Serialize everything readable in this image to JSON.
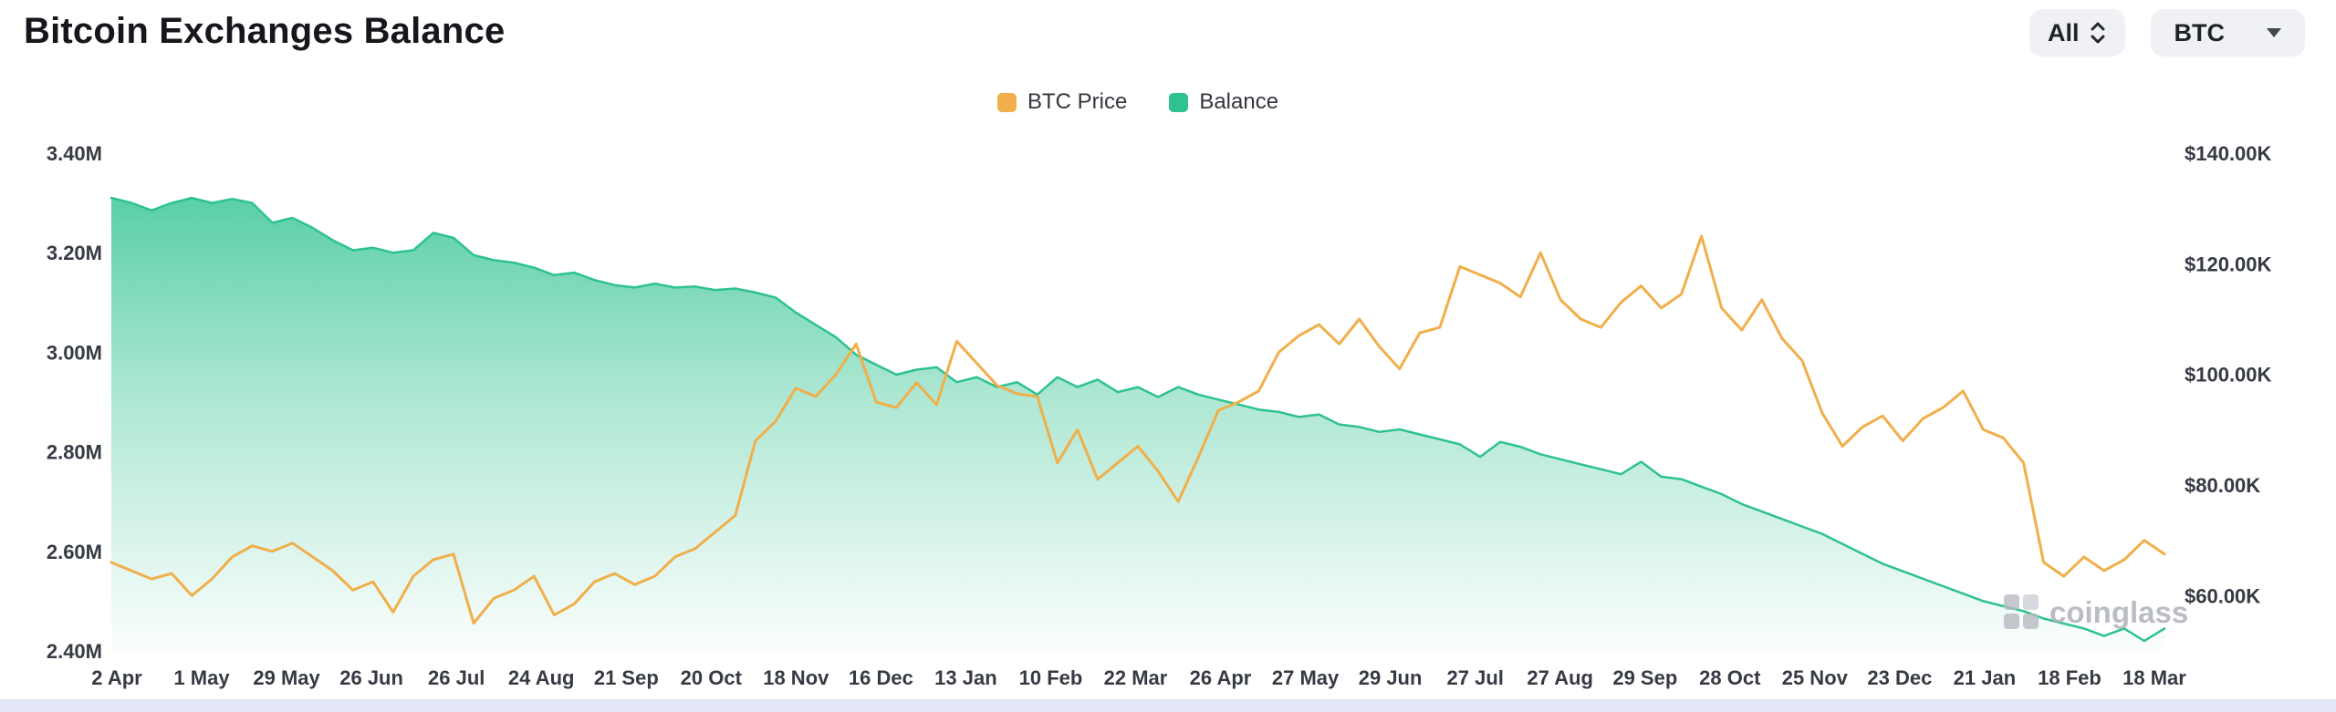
{
  "header": {
    "title": "Bitcoin Exchanges Balance",
    "controls": {
      "range_selector": "All",
      "coin_selector": "BTC"
    }
  },
  "watermark": "coinglass",
  "colors": {
    "price": "#f0af4a",
    "balance": "#2ec28e",
    "button_bg": "#f0f1f5",
    "axis_text": "#363a43",
    "scrollbar": "#e4e7f8"
  },
  "chart_data": {
    "type": "area",
    "title": "Bitcoin Exchanges Balance",
    "legend": [
      {
        "name": "BTC Price",
        "color": "#f0af4a"
      },
      {
        "name": "Balance",
        "color": "#2ec28e"
      }
    ],
    "legend_position": "top-center",
    "grid": false,
    "x_tick_labels": [
      "2 Apr",
      "1 May",
      "29 May",
      "26 Jun",
      "26 Jul",
      "24 Aug",
      "21 Sep",
      "20 Oct",
      "18 Nov",
      "16 Dec",
      "13 Jan",
      "10 Feb",
      "22 Mar",
      "26 Apr",
      "27 May",
      "29 Jun",
      "27 Jul",
      "27 Aug",
      "29 Sep",
      "28 Oct",
      "25 Nov",
      "23 Dec",
      "21 Jan",
      "18 Feb",
      "18 Mar"
    ],
    "left_axis": {
      "series": "Balance",
      "unit": "M",
      "min": 2.4,
      "max": 3.4,
      "tick_labels": [
        "3.40M",
        "3.20M",
        "3.00M",
        "2.80M",
        "2.60M",
        "2.40M"
      ],
      "tick_values": [
        3.4,
        3.2,
        3.0,
        2.8,
        2.6,
        2.4
      ]
    },
    "right_axis": {
      "series": "BTC Price",
      "unit": "$K",
      "top_value": 140,
      "bottom_value": 50,
      "tick_labels": [
        "$140.00K",
        "$120.00K",
        "$100.00K",
        "$80.00K",
        "$60.00K"
      ],
      "tick_values": [
        140,
        120,
        100,
        80,
        60
      ]
    },
    "series": [
      {
        "name": "Balance",
        "type": "area",
        "axis": "left",
        "color": "#2ec28e",
        "values": [
          3.31,
          3.3,
          3.285,
          3.3,
          3.31,
          3.3,
          3.308,
          3.3,
          3.26,
          3.27,
          3.25,
          3.225,
          3.205,
          3.21,
          3.2,
          3.205,
          3.24,
          3.23,
          3.195,
          3.185,
          3.18,
          3.17,
          3.155,
          3.16,
          3.145,
          3.135,
          3.13,
          3.138,
          3.13,
          3.132,
          3.125,
          3.128,
          3.12,
          3.11,
          3.08,
          3.055,
          3.03,
          2.995,
          2.975,
          2.955,
          2.965,
          2.97,
          2.94,
          2.95,
          2.93,
          2.94,
          2.915,
          2.95,
          2.93,
          2.945,
          2.92,
          2.93,
          2.91,
          2.93,
          2.915,
          2.905,
          2.895,
          2.885,
          2.88,
          2.87,
          2.875,
          2.855,
          2.85,
          2.84,
          2.845,
          2.835,
          2.825,
          2.815,
          2.79,
          2.82,
          2.81,
          2.795,
          2.785,
          2.775,
          2.765,
          2.755,
          2.78,
          2.75,
          2.745,
          2.73,
          2.715,
          2.695,
          2.68,
          2.665,
          2.65,
          2.635,
          2.615,
          2.595,
          2.575,
          2.56,
          2.545,
          2.53,
          2.515,
          2.5,
          2.49,
          2.48,
          2.465,
          2.455,
          2.445,
          2.43,
          2.445,
          2.42,
          2.445
        ]
      },
      {
        "name": "BTC Price",
        "type": "line",
        "axis": "right",
        "color": "#f0af4a",
        "values": [
          66,
          64.5,
          63,
          64,
          60,
          63,
          67,
          69,
          68,
          69.5,
          67,
          64.5,
          61,
          62.5,
          57,
          63.5,
          66.5,
          67.5,
          55,
          59.5,
          61,
          63.5,
          56.5,
          58.5,
          62.5,
          64,
          62,
          63.5,
          67,
          68.5,
          71.5,
          74.5,
          88,
          91.5,
          97.5,
          96,
          100,
          105.5,
          95,
          94,
          98.5,
          94.5,
          106,
          102,
          98,
          96.5,
          96,
          84,
          90,
          81,
          84,
          87,
          82.5,
          77,
          85,
          93.5,
          95,
          97,
          104,
          107,
          109,
          105.5,
          110,
          105,
          101,
          107.5,
          108.5,
          119.5,
          118,
          116.5,
          114,
          122,
          113.5,
          110,
          108.5,
          113,
          116,
          112,
          114.5,
          125,
          112,
          108,
          113.5,
          106.5,
          102.5,
          93,
          87,
          90.5,
          92.5,
          88,
          92,
          94,
          97,
          90,
          88.5,
          84,
          66,
          63.5,
          67,
          64.5,
          66.5,
          70,
          67.5
        ]
      }
    ]
  }
}
